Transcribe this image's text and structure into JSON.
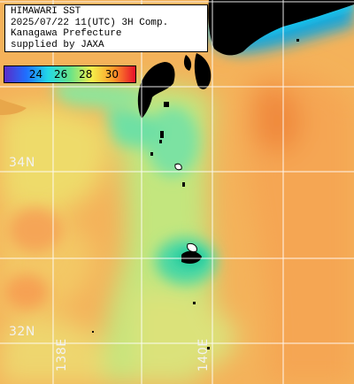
{
  "title": {
    "line1": "HIMAWARI SST",
    "line2": "2025/07/22 11(UTC) 3H Comp.",
    "line3": "Kanagawa Prefecture",
    "line4": "supplied by JAXA"
  },
  "colorbar": {
    "ticks": [
      "24",
      "26",
      "28",
      "30"
    ],
    "colors": {
      "violet": "#5a2cc8",
      "blue": "#1f6fff",
      "cyan": "#22d8e6",
      "green": "#66e38a",
      "yellow": "#f4ef4a",
      "orange": "#ff9a2a",
      "red": "#e8102a"
    }
  },
  "grid_labels": {
    "lat_34": "34N",
    "lat_32": "32N",
    "lon_138": "138E",
    "lon_140": "140E"
  },
  "colors": {
    "land": "#000000",
    "grid": "#ffffff",
    "ocean_warm": "#f6a752",
    "ocean_mild": "#f2d66a",
    "ocean_cool": "#b9e680",
    "ocean_cold": "#52dea0"
  }
}
